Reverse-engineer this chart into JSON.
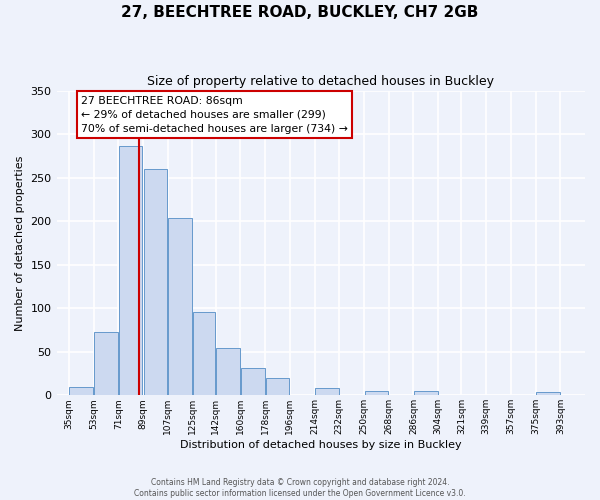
{
  "title": "27, BEECHTREE ROAD, BUCKLEY, CH7 2GB",
  "subtitle": "Size of property relative to detached houses in Buckley",
  "xlabel": "Distribution of detached houses by size in Buckley",
  "ylabel": "Number of detached properties",
  "bar_left_edges": [
    35,
    53,
    71,
    89,
    107,
    125,
    142,
    160,
    178,
    196,
    214,
    232,
    250,
    268,
    286,
    304,
    321,
    339,
    357,
    375
  ],
  "bar_widths": [
    18,
    18,
    18,
    18,
    18,
    17,
    18,
    18,
    18,
    18,
    18,
    18,
    18,
    18,
    18,
    17,
    18,
    18,
    18,
    18
  ],
  "bar_heights": [
    9,
    73,
    286,
    260,
    204,
    96,
    54,
    31,
    20,
    0,
    8,
    0,
    5,
    0,
    5,
    0,
    0,
    0,
    0,
    4
  ],
  "tick_labels": [
    "35sqm",
    "53sqm",
    "71sqm",
    "89sqm",
    "107sqm",
    "125sqm",
    "142sqm",
    "160sqm",
    "178sqm",
    "196sqm",
    "214sqm",
    "232sqm",
    "250sqm",
    "268sqm",
    "286sqm",
    "304sqm",
    "321sqm",
    "339sqm",
    "357sqm",
    "375sqm",
    "393sqm"
  ],
  "tick_positions": [
    35,
    53,
    71,
    89,
    107,
    125,
    142,
    160,
    178,
    196,
    214,
    232,
    250,
    268,
    286,
    304,
    321,
    339,
    357,
    375,
    393
  ],
  "bar_color": "#ccd9f0",
  "bar_edge_color": "#6699cc",
  "vline_x": 86,
  "vline_color": "#cc0000",
  "ylim": [
    0,
    350
  ],
  "xlim": [
    26,
    411
  ],
  "annotation_title": "27 BEECHTREE ROAD: 86sqm",
  "annotation_line1": "← 29% of detached houses are smaller (299)",
  "annotation_line2": "70% of semi-detached houses are larger (734) →",
  "annotation_box_color": "#cc0000",
  "annotation_box_fill": "#ffffff",
  "footer_line1": "Contains HM Land Registry data © Crown copyright and database right 2024.",
  "footer_line2": "Contains public sector information licensed under the Open Government Licence v3.0.",
  "background_color": "#eef2fb",
  "plot_background_color": "#eef2fb",
  "grid_color": "#ffffff",
  "yticks": [
    0,
    50,
    100,
    150,
    200,
    250,
    300,
    350
  ]
}
